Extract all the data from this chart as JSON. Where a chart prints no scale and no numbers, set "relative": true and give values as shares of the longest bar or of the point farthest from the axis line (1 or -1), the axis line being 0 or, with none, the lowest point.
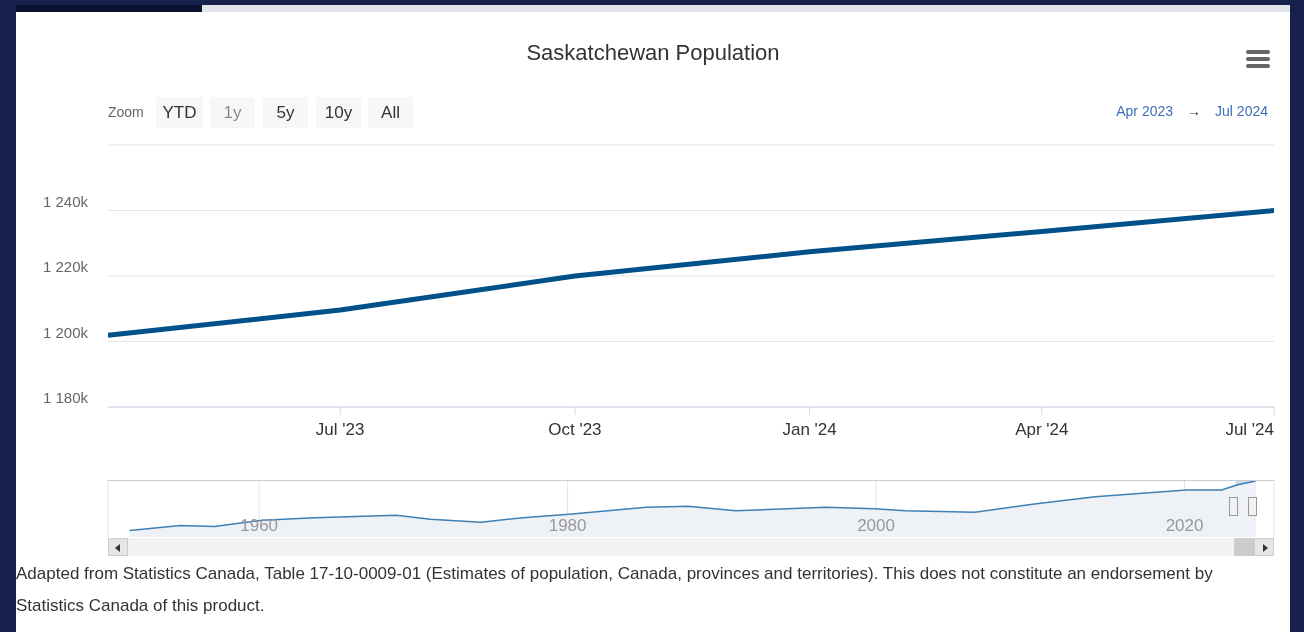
{
  "chart_data": [
    {
      "type": "line",
      "title": "Saskatchewan Population",
      "x": [
        "2023-04",
        "2023-07",
        "2023-10",
        "2024-01",
        "2024-04",
        "2024-07"
      ],
      "series": [
        {
          "color": "#00508a",
          "values": [
            1201900,
            1209600,
            1220000,
            1227400,
            1233600,
            1240000
          ]
        }
      ],
      "xlim": [
        "2023-04",
        "2024-07"
      ],
      "xticks": [
        {
          "value": "2023-07",
          "label": "Jul '23"
        },
        {
          "value": "2023-10",
          "label": "Oct '23"
        },
        {
          "value": "2024-01",
          "label": "Jan '24"
        },
        {
          "value": "2024-04",
          "label": "Apr '24"
        },
        {
          "value": "2024-07",
          "label": "Jul '24"
        }
      ],
      "ylim": [
        1180000,
        1260000
      ],
      "yticks": [
        {
          "value": 1180000,
          "label": "1 180k"
        },
        {
          "value": 1200000,
          "label": "1 200k"
        },
        {
          "value": 1220000,
          "label": "1 220k"
        },
        {
          "value": 1240000,
          "label": "1 240k"
        },
        {
          "value": 1260000,
          "label": null
        }
      ],
      "grid": "y",
      "annotations": [
        "Zoom",
        "YTD",
        "1y",
        "5y",
        "10y",
        "All",
        "Apr 2023",
        "→",
        "Jul 2024",
        "Adapted from Statistics Canada, Table 17-10-0009-01 (Estimates of population, Canada, provinces and territories). This does not constitute an endorsement by Statistics Canada of this product."
      ]
    },
    {
      "type": "area",
      "relative": true,
      "x": [
        1951.6,
        1954.9,
        1957.1,
        1960.2,
        1963.6,
        1968.9,
        1971.1,
        1974.4,
        1977.1,
        1980.1,
        1985.1,
        1987.8,
        1990.9,
        1996.7,
        1999.9,
        2001.9,
        2006.4,
        2010.4,
        2014.2,
        2020.1,
        2022.4,
        2023.4,
        2024.6
      ],
      "series": [
        {
          "color": "#3f7fb3",
          "values": [
            0,
            0.1,
            0.08,
            0.21,
            0.26,
            0.31,
            0.23,
            0.17,
            0.26,
            0.33,
            0.47,
            0.49,
            0.4,
            0.47,
            0.44,
            0.4,
            0.37,
            0.54,
            0.68,
            0.82,
            0.82,
            0.92,
            1
          ]
        }
      ],
      "xlim": [
        1950.2,
        2025.8
      ],
      "xticks": [
        1960,
        1980,
        2000,
        2020
      ],
      "grid": "x",
      "bands": [
        {
          "axis": "x",
          "from": 2023.3,
          "to": 2024.6,
          "color": "#c6d2ea"
        }
      ]
    }
  ]
}
